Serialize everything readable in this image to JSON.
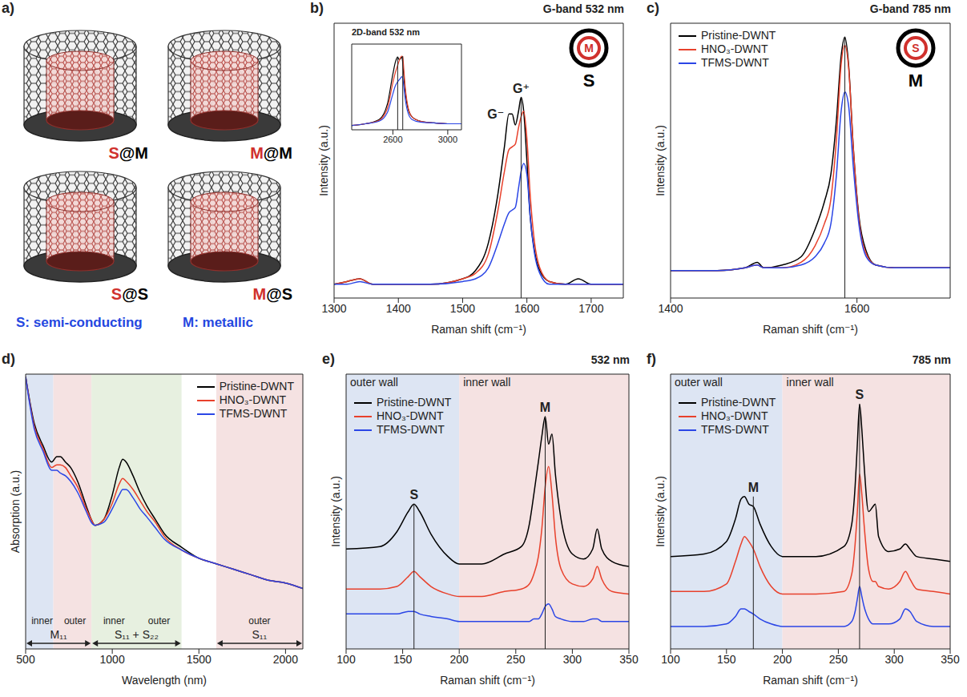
{
  "diagram": {
    "panel": "a)",
    "tubes": [
      "S@M",
      "M@M",
      "S@S",
      "M@S"
    ],
    "key": [
      "S: semi-conducting",
      "M: metallic"
    ]
  },
  "chart_data": [
    {
      "panel": "b)",
      "type": "line",
      "title": "G-band 532 nm",
      "x_label": "Raman shift (cm⁻¹)",
      "y_label": "Intensity (a.u.)",
      "x": [
        1300,
        1320,
        1340,
        1360,
        1400,
        1450,
        1500,
        1520,
        1540,
        1555,
        1565,
        1572,
        1577,
        1582,
        1587,
        1591,
        1595,
        1600,
        1605,
        1612,
        1620,
        1635,
        1660,
        1680,
        1700,
        1750
      ],
      "series": [
        {
          "color": "#000000",
          "values": [
            5,
            6,
            7,
            5,
            5,
            5,
            7,
            10,
            20,
            38,
            55,
            67,
            67,
            63,
            68,
            73,
            68,
            50,
            30,
            17,
            10,
            6,
            5,
            7,
            5,
            5
          ]
        },
        {
          "color": "#e8412c",
          "values": [
            5,
            6,
            7,
            5,
            5,
            5,
            7,
            9,
            16,
            32,
            46,
            54,
            55,
            56,
            62,
            66,
            68,
            58,
            38,
            20,
            11,
            6,
            5,
            5,
            5,
            5
          ]
        },
        {
          "color": "#2b46e6",
          "values": [
            5,
            5,
            6,
            5,
            5,
            5,
            6,
            7,
            11,
            20,
            27,
            31,
            32,
            33,
            40,
            46,
            49,
            45,
            30,
            16,
            9,
            5,
            5,
            5,
            5,
            5
          ]
        }
      ],
      "xlim": [
        1300,
        1750
      ],
      "xticks": [
        1300,
        1400,
        1500,
        1600,
        1700
      ],
      "ylim": [
        0,
        100
      ],
      "tick_labels": "x",
      "vlines": [
        1591
      ],
      "peak_labels": [
        {
          "text": "G⁻",
          "x": 1572
        },
        {
          "text": "G⁺",
          "x": 1591
        }
      ],
      "tube_icon": {
        "inner": "M",
        "outer": "S"
      },
      "inset": {
        "type": "line",
        "title": "2D-band 532 nm",
        "x": [
          2300,
          2400,
          2500,
          2560,
          2600,
          2620,
          2635,
          2645,
          2655,
          2665,
          2672,
          2680,
          2690,
          2710,
          2740,
          2800,
          2900,
          3000,
          3100
        ],
        "series": [
          {
            "color": "#000000",
            "values": [
              5,
              7,
              12,
              30,
              65,
              80,
              85,
              82,
              83,
              85,
              78,
              62,
              45,
              25,
              15,
              10,
              8,
              7,
              7
            ]
          },
          {
            "color": "#e8412c",
            "values": [
              5,
              7,
              11,
              25,
              55,
              68,
              75,
              80,
              84,
              86,
              85,
              70,
              50,
              27,
              15,
              10,
              8,
              7,
              7
            ]
          },
          {
            "color": "#2b46e6",
            "values": [
              5,
              7,
              10,
              20,
              42,
              52,
              56,
              58,
              60,
              62,
              60,
              50,
              36,
              20,
              12,
              9,
              8,
              7,
              7
            ]
          }
        ],
        "xlim": [
          2300,
          3100
        ],
        "xticks": [
          2600,
          3000
        ],
        "ylim": [
          0,
          100
        ],
        "tick_labels": "x",
        "vlines": [
          2635,
          2672
        ]
      }
    },
    {
      "panel": "c)",
      "type": "line",
      "title": "G-band 785 nm",
      "x_label": "Raman shift (cm⁻¹)",
      "y_label": "Intensity (a.u.)",
      "x": [
        1400,
        1450,
        1480,
        1493,
        1500,
        1520,
        1540,
        1555,
        1565,
        1572,
        1578,
        1583,
        1587,
        1591,
        1596,
        1602,
        1610,
        1620,
        1640,
        1660,
        1700
      ],
      "series": [
        {
          "name": "Pristine-DWNT",
          "color": "#000000",
          "values": [
            10,
            10,
            11,
            13,
            11,
            12,
            15,
            25,
            35,
            45,
            65,
            88,
            95,
            85,
            55,
            30,
            17,
            12,
            11,
            11,
            11
          ]
        },
        {
          "name": "HNO₃-DWNT",
          "color": "#e8412c",
          "values": [
            10,
            10,
            11,
            12,
            11,
            11,
            13,
            19,
            27,
            36,
            58,
            85,
            92,
            84,
            55,
            29,
            16,
            12,
            11,
            11,
            11
          ]
        },
        {
          "name": "TFMS-DWNT",
          "color": "#2b46e6",
          "values": [
            10,
            10,
            11,
            12,
            11,
            11,
            12,
            15,
            20,
            27,
            45,
            68,
            75,
            70,
            48,
            27,
            15,
            12,
            11,
            11,
            11
          ]
        }
      ],
      "xlim": [
        1400,
        1700
      ],
      "xticks": [
        1400,
        1600
      ],
      "ylim": [
        0,
        100
      ],
      "tick_labels": "x",
      "legend": "upper left",
      "vlines": [
        1587
      ],
      "tube_icon": {
        "inner": "S",
        "outer": "M"
      }
    },
    {
      "panel": "d)",
      "type": "line",
      "x_label": "Wavelength (nm)",
      "y_label": "Absorption (a.u.)",
      "x": [
        500,
        550,
        600,
        650,
        680,
        700,
        730,
        760,
        800,
        850,
        880,
        900,
        950,
        1000,
        1040,
        1060,
        1080,
        1120,
        1160,
        1200,
        1250,
        1300,
        1400,
        1500,
        1600,
        1700,
        1800,
        1900,
        2000,
        2100
      ],
      "series": [
        {
          "name": "Pristine-DWNT",
          "color": "#000000",
          "values": [
            99,
            82,
            74,
            68,
            70,
            70,
            68,
            66,
            61,
            52,
            47,
            45,
            47,
            56,
            66,
            69,
            68,
            63,
            57,
            52,
            47,
            42,
            37,
            33,
            31,
            29,
            27,
            25,
            24,
            22
          ]
        },
        {
          "name": "HNO₃-DWNT",
          "color": "#e8412c",
          "values": [
            99,
            81,
            73,
            66,
            67,
            67,
            66,
            63,
            59,
            51,
            47,
            45,
            47,
            53,
            60,
            62,
            61,
            58,
            54,
            50,
            46,
            41,
            36,
            33,
            31,
            29,
            27,
            25,
            24,
            22
          ]
        },
        {
          "name": "TFMS-DWNT",
          "color": "#2b46e6",
          "values": [
            99,
            80,
            72,
            65,
            65,
            64,
            63,
            61,
            57,
            50,
            46,
            45,
            46,
            51,
            56,
            58,
            58,
            55,
            51,
            48,
            44,
            40,
            36,
            33,
            31,
            29,
            27,
            25,
            24,
            22
          ]
        }
      ],
      "xlim": [
        500,
        2100
      ],
      "xticks": [
        500,
        1000,
        1500,
        2000
      ],
      "ylim": [
        0,
        100
      ],
      "tick_labels": "x",
      "legend": "upper right",
      "regions": [
        {
          "from": 500,
          "to": 660,
          "color": "#dde5f3"
        },
        {
          "from": 660,
          "to": 880,
          "color": "#f5e2e2"
        },
        {
          "from": 880,
          "to": 1400,
          "color": "#e7f0e0"
        },
        {
          "from": 1600,
          "to": 2100,
          "color": "#f5e2e2"
        }
      ],
      "bands": [
        {
          "from": 500,
          "to": 880,
          "label": "M₁₁",
          "sublabels": [
            "inner",
            "outer"
          ]
        },
        {
          "from": 880,
          "to": 1400,
          "label": "S₁₁ + S₂₂",
          "sublabels": [
            "inner",
            "outer"
          ]
        },
        {
          "from": 1600,
          "to": 2100,
          "label": "S₁₁",
          "sublabels": [
            "outer"
          ]
        }
      ]
    },
    {
      "panel": "e)",
      "type": "line",
      "title": "532 nm",
      "x_label": "Raman shift (cm⁻¹)",
      "y_label": "Intensity (a.u.)",
      "x": [
        100,
        130,
        145,
        155,
        160,
        165,
        175,
        190,
        200,
        220,
        240,
        255,
        262,
        266,
        270,
        273,
        276,
        279,
        282,
        285,
        290,
        300,
        310,
        318,
        322,
        326,
        335,
        350
      ],
      "series": [
        {
          "name": "Pristine-DWNT",
          "color": "#000000",
          "values": [
            40,
            41,
            47,
            55,
            58,
            55,
            46,
            37,
            34,
            34,
            38,
            41,
            50,
            62,
            75,
            85,
            93,
            82,
            86,
            70,
            52,
            38,
            36,
            40,
            48,
            40,
            35,
            33
          ]
        },
        {
          "name": "HNO₃-DWNT",
          "color": "#e8412c",
          "values": [
            24,
            24,
            25,
            29,
            31,
            29,
            25,
            22,
            21,
            21,
            23,
            24,
            26,
            30,
            37,
            48,
            65,
            73,
            62,
            45,
            32,
            26,
            25,
            28,
            33,
            28,
            23,
            22
          ]
        },
        {
          "name": "TFMS-DWNT",
          "color": "#2b46e6",
          "values": [
            14,
            14,
            14,
            15,
            15,
            14,
            13,
            12,
            11,
            11,
            11,
            11,
            11,
            12,
            12,
            14,
            17,
            18,
            16,
            13,
            12,
            11,
            11,
            12,
            12,
            11,
            11,
            11
          ]
        }
      ],
      "xlim": [
        100,
        350
      ],
      "xticks": [
        100,
        150,
        200,
        250,
        300,
        350
      ],
      "ylim": [
        0,
        110
      ],
      "tick_labels": "x",
      "legend": "upper left",
      "regions": [
        {
          "from": 100,
          "to": 200,
          "label": "outer wall",
          "color": "#dde5f3"
        },
        {
          "from": 200,
          "to": 350,
          "label": "inner wall",
          "color": "#f5e2e2"
        }
      ],
      "vlines": [
        160,
        276
      ],
      "peak_labels": [
        {
          "text": "S",
          "x": 160
        },
        {
          "text": "M",
          "x": 276
        }
      ]
    },
    {
      "panel": "f)",
      "type": "line",
      "title": "785 nm",
      "x_label": "Raman shift (cm⁻¹)",
      "y_label": "Intensity (a.u.)",
      "x": [
        100,
        130,
        150,
        158,
        163,
        166,
        170,
        174,
        180,
        190,
        200,
        230,
        255,
        262,
        265,
        267,
        269,
        271,
        273,
        277,
        281,
        283,
        286,
        295,
        305,
        310,
        314,
        320,
        335,
        350
      ],
      "series": [
        {
          "name": "Pristine-DWNT",
          "color": "#000000",
          "values": [
            37,
            38,
            43,
            52,
            60,
            61,
            58,
            57,
            50,
            41,
            37,
            37,
            41,
            50,
            65,
            82,
            98,
            88,
            74,
            55,
            57,
            58,
            45,
            39,
            40,
            42,
            40,
            37,
            36,
            35
          ]
        },
        {
          "name": "HNO₃-DWNT",
          "color": "#e8412c",
          "values": [
            23,
            23,
            26,
            35,
            42,
            45,
            43,
            40,
            33,
            25,
            22,
            22,
            23,
            30,
            42,
            55,
            70,
            62,
            50,
            32,
            27,
            27,
            25,
            24,
            27,
            31,
            28,
            24,
            23,
            22
          ]
        },
        {
          "name": "TFMS-DWNT",
          "color": "#2b46e6",
          "values": [
            9,
            9,
            10,
            13,
            16,
            16,
            15,
            14,
            12,
            10,
            9,
            9,
            9,
            11,
            15,
            20,
            25,
            21,
            17,
            12,
            10,
            10,
            10,
            10,
            12,
            16,
            15,
            11,
            9,
            9
          ]
        }
      ],
      "xlim": [
        100,
        350
      ],
      "xticks": [
        100,
        150,
        200,
        250,
        300,
        350
      ],
      "ylim": [
        0,
        110
      ],
      "tick_labels": "x",
      "legend": "upper left",
      "regions": [
        {
          "from": 100,
          "to": 200,
          "label": "outer wall",
          "color": "#dde5f3"
        },
        {
          "from": 200,
          "to": 350,
          "label": "inner wall",
          "color": "#f5e2e2"
        }
      ],
      "vlines": [
        174,
        269
      ],
      "peak_labels": [
        {
          "text": "M",
          "x": 174
        },
        {
          "text": "S",
          "x": 269
        }
      ]
    }
  ]
}
